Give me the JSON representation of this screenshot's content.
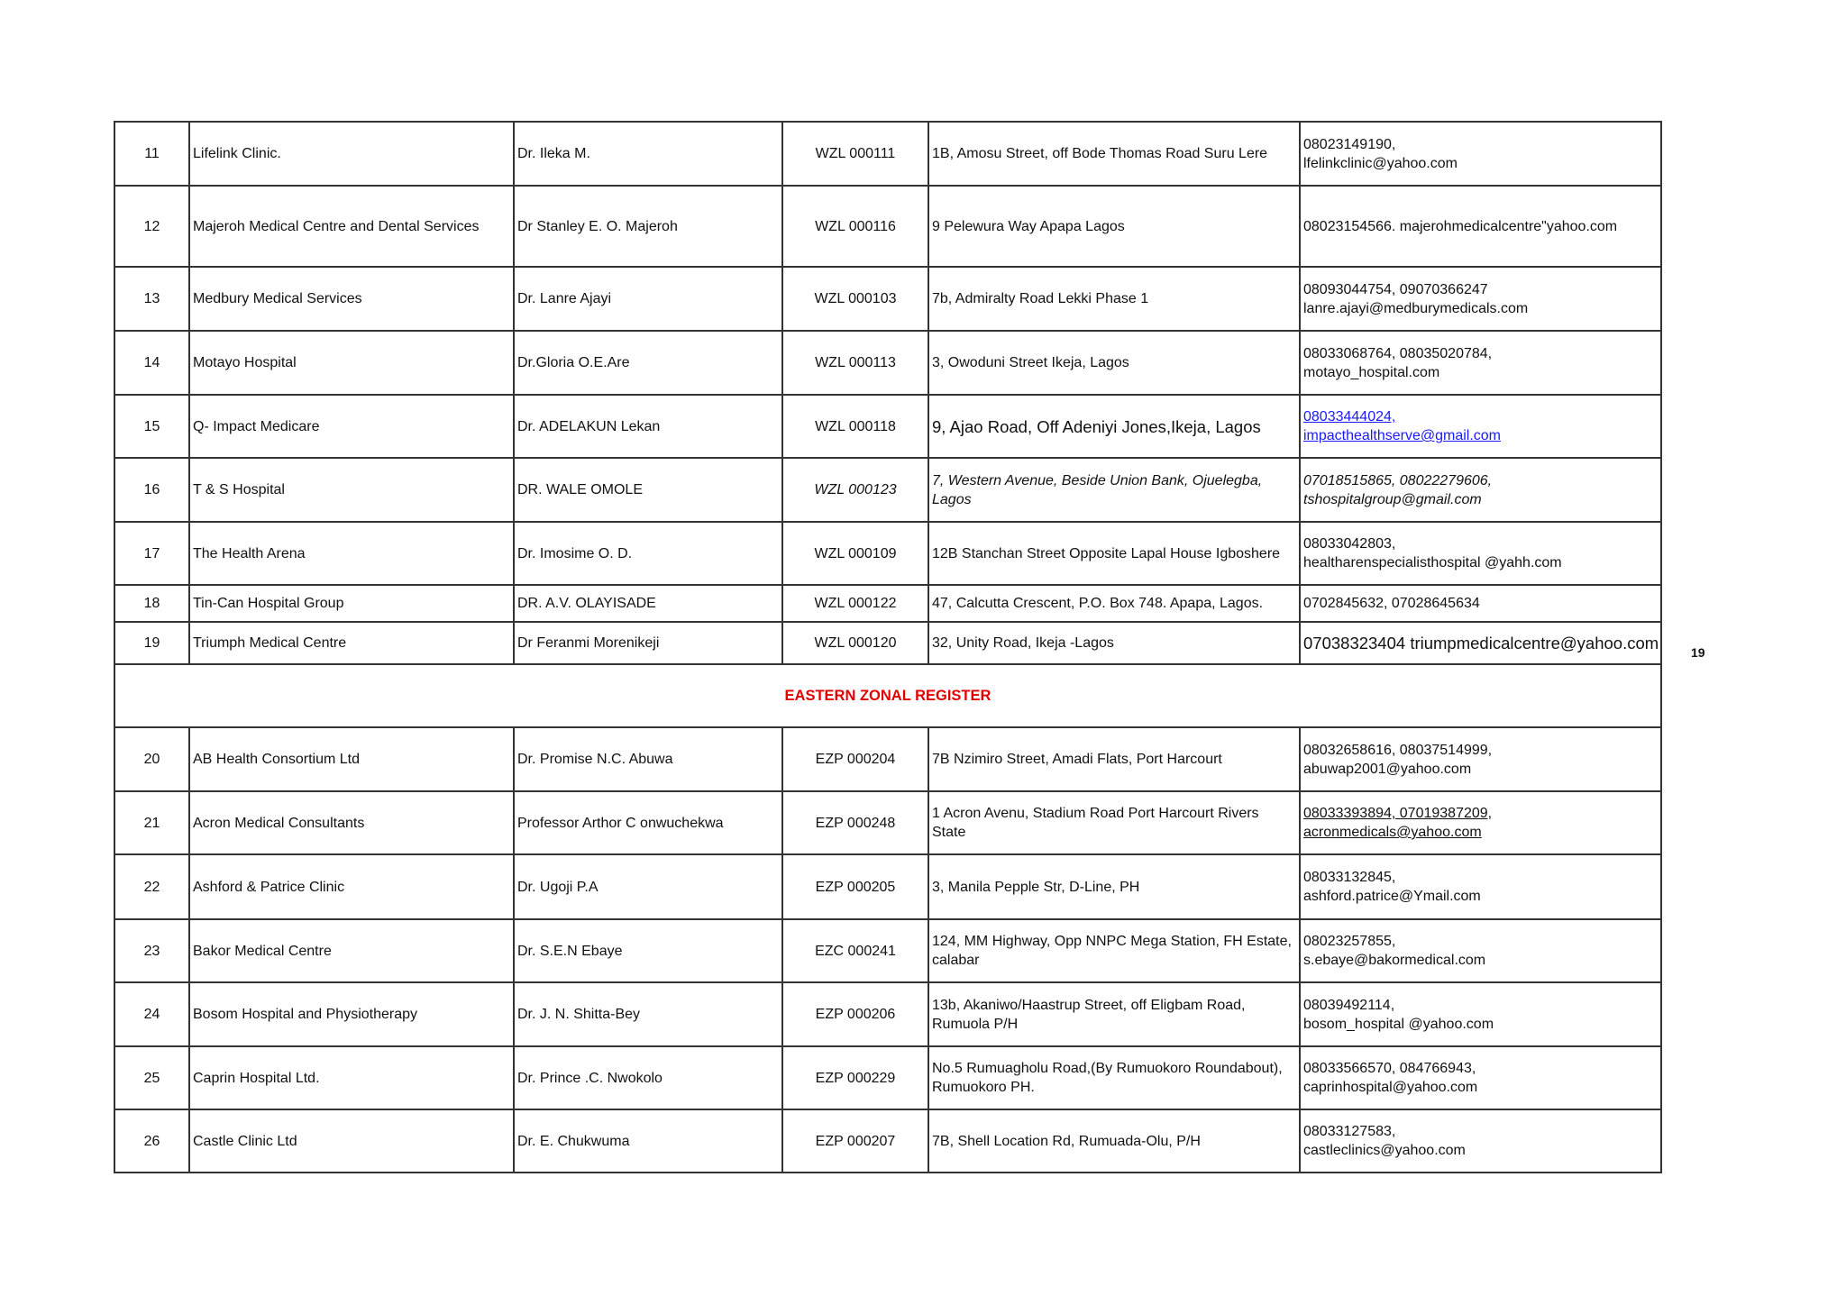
{
  "page_number": "19",
  "section_header": "EASTERN  ZONAL REGISTER",
  "colors": {
    "section_header": "#e00000",
    "link": "#1a1aff"
  },
  "rows_west": [
    {
      "no": "11",
      "name": "Lifelink Clinic.",
      "doctor": "Dr. Ileka M.",
      "code": "WZL 000111",
      "address": [
        "1B, Amosu Street, off Bode Thomas Road Suru Lere"
      ],
      "contact": [
        "08023149190,",
        "lfelinkclinic@yahoo.com"
      ]
    },
    {
      "no": "12",
      "name": "Majeroh Medical Centre and Dental Services",
      "doctor": "Dr Stanley E. O. Majeroh",
      "code": "WZL 000116",
      "address": [
        "9 Pelewura Way Apapa Lagos"
      ],
      "contact": [
        "08023154566. majerohmedicalcentre\"yahoo.com"
      ]
    },
    {
      "no": "13",
      "name": "Medbury Medical Services",
      "doctor": "Dr. Lanre Ajayi",
      "code": "WZL 000103",
      "address": [
        "7b, Admiralty Road Lekki Phase 1"
      ],
      "contact": [
        "08093044754,  09070366247",
        "lanre.ajayi@medburymedicals.com"
      ]
    },
    {
      "no": "14",
      "name": "Motayo Hospital",
      "doctor": "Dr.Gloria O.E.Are",
      "code": "WZL 000113",
      "address": [
        "3, Owoduni Street Ikeja, Lagos"
      ],
      "contact": [
        "08033068764,   08035020784,",
        "motayo_hospital.com"
      ]
    },
    {
      "no": "15",
      "name": "Q- Impact Medicare",
      "doctor": "Dr. ADELAKUN Lekan",
      "code": "WZL 000118",
      "address": [
        "9, Ajao Road, Off Adeniyi Jones,Ikeja,  Lagos"
      ],
      "contact": [
        "08033444024,",
        "impacthealthserve@gmail.com"
      ]
    },
    {
      "no": "16",
      "name": "T & S Hospital",
      "doctor": "DR. WALE OMOLE",
      "code": "WZL 000123",
      "address": [
        "7, Western Avenue, Beside Union Bank, Ojuelegba,",
        "Lagos"
      ],
      "contact": [
        "07018515865, 08022279606,",
        "tshospitalgroup@gmail.com"
      ]
    },
    {
      "no": "17",
      "name": "The Health Arena",
      "doctor": "Dr. Imosime O. D.",
      "code": "WZL 000109",
      "address": [
        "12B Stanchan Street Opposite Lapal House Igboshere"
      ],
      "contact": [
        "08033042803,",
        "healtharenspecialisthospital @yahh.com"
      ]
    },
    {
      "no": "18",
      "name": "Tin-Can Hospital Group",
      "doctor": "DR. A.V. OLAYISADE",
      "code": "WZL 000122",
      "address": [
        "47, Calcutta Crescent, P.O. Box 748. Apapa, Lagos."
      ],
      "contact": [
        "0702845632,  07028645634"
      ]
    },
    {
      "no": "19",
      "name": "Triumph Medical Centre",
      "doctor": "Dr Feranmi Morenikeji",
      "code": "WZL 000120",
      "address": [
        "32, Unity Road, Ikeja -Lagos"
      ],
      "contact": [
        "07038323404 triumpmedicalcentre@yahoo.com"
      ]
    }
  ],
  "rows_east": [
    {
      "no": "20",
      "name": "AB Health Consortium  Ltd",
      "doctor": "Dr. Promise N.C. Abuwa",
      "code": "EZP 000204",
      "address": [
        "7B Nzimiro Street, Amadi Flats, Port Harcourt"
      ],
      "contact": [
        "08032658616, 08037514999,",
        "abuwap2001@yahoo.com"
      ]
    },
    {
      "no": "21",
      "name": "Acron Medical Consultants",
      "doctor": "Professor  Arthor C onwuchekwa",
      "code": "EZP 000248",
      "address": [
        "1 Acron Avenu, Stadium Road Port Harcourt Rivers",
        "State"
      ],
      "contact": [
        "08033393894, 07019387209,",
        "acronmedicals@yahoo.com"
      ]
    },
    {
      "no": "22",
      "name": "Ashford & Patrice Clinic",
      "doctor": "Dr. Ugoji P.A",
      "code": "EZP 000205",
      "address": [
        "3, Manila Pepple Str, D-Line, PH"
      ],
      "contact": [
        "08033132845,",
        "ashford.patrice@Ymail.com"
      ]
    },
    {
      "no": "23",
      "name": "Bakor Medical Centre",
      "doctor": "Dr. S.E.N Ebaye",
      "code": "EZC 000241",
      "address": [
        "124, MM Highway, Opp NNPC Mega Station, FH Estate,",
        "calabar"
      ],
      "contact": [
        "08023257855,",
        "s.ebaye@bakormedical.com"
      ]
    },
    {
      "no": "24",
      "name": "Bosom Hospital and Physiotherapy",
      "doctor": "Dr.  J. N. Shitta-Bey",
      "code": "EZP 000206",
      "address": [
        "13b, Akaniwo/Haastrup Street, off Eligbam Road,",
        "Rumuola P/H"
      ],
      "contact": [
        "08039492114,",
        "bosom_hospital @yahoo.com"
      ]
    },
    {
      "no": "25",
      "name": "Caprin Hospital Ltd.",
      "doctor": "Dr. Prince .C. Nwokolo",
      "code": "EZP 000229",
      "address": [
        "No.5 Rumuagholu Road,(By Rumuokoro Roundabout),",
        "Rumuokoro PH."
      ],
      "contact": [
        "08033566570, 084766943,",
        "caprinhospital@yahoo.com"
      ]
    },
    {
      "no": "26",
      "name": "Castle Clinic Ltd",
      "doctor": "Dr.  E. Chukwuma",
      "code": "EZP 000207",
      "address": [
        "7B, Shell Location Rd, Rumuada-Olu, P/H"
      ],
      "contact": [
        "08033127583,",
        "castleclinics@yahoo.com"
      ]
    }
  ]
}
